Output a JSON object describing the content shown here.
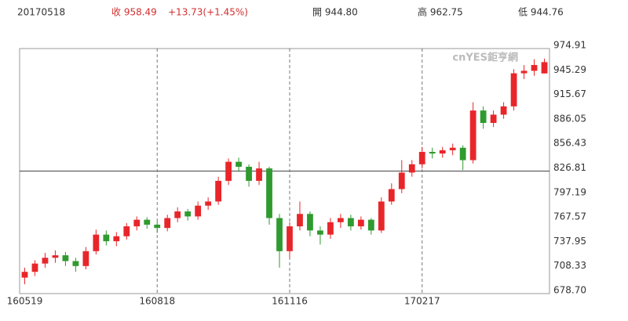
{
  "chart_data": {
    "type": "candlestick",
    "quote": {
      "date": "20170518",
      "close": "收 958.49",
      "change": "+13.73(+1.45%)",
      "open": "開 944.80",
      "high": "高 962.75",
      "low": "低 944.76"
    },
    "watermark": "cnYES鉅亨網",
    "categories": [
      "160519",
      null,
      null,
      null,
      null,
      null,
      null,
      null,
      null,
      null,
      null,
      null,
      null,
      "160818",
      null,
      null,
      null,
      null,
      null,
      null,
      null,
      null,
      null,
      null,
      null,
      null,
      "161116",
      null,
      null,
      null,
      null,
      null,
      null,
      null,
      null,
      null,
      null,
      null,
      null,
      "170217",
      null,
      null,
      null,
      null,
      null,
      null,
      null,
      null,
      null,
      null,
      null,
      null
    ],
    "open": [
      698,
      705,
      715,
      722,
      725,
      718,
      712,
      730,
      750,
      742,
      748,
      760,
      768,
      762,
      758,
      770,
      778,
      772,
      785,
      790,
      815,
      838,
      832,
      815,
      830,
      770,
      730,
      760,
      775,
      755,
      750,
      765,
      770,
      760,
      768,
      755,
      790,
      805,
      825,
      835,
      850,
      848,
      852,
      855,
      840,
      900,
      885,
      895,
      905,
      945,
      948,
      944.8
    ],
    "high": [
      710,
      719,
      728,
      731,
      729,
      722,
      735,
      756,
      755,
      753,
      764,
      772,
      771,
      766,
      774,
      783,
      781,
      790,
      795,
      820,
      842,
      843,
      835,
      838,
      832,
      775,
      765,
      790,
      778,
      760,
      770,
      775,
      774,
      772,
      770,
      795,
      812,
      840,
      840,
      856,
      855,
      856,
      860,
      858,
      910,
      905,
      900,
      910,
      950,
      955,
      962,
      962.75
    ],
    "low": [
      690,
      700,
      710,
      716,
      712,
      705,
      708,
      726,
      737,
      736,
      744,
      755,
      757,
      752,
      754,
      765,
      767,
      768,
      780,
      786,
      810,
      826,
      808,
      810,
      762,
      710,
      722,
      755,
      748,
      738,
      745,
      758,
      755,
      756,
      750,
      752,
      786,
      800,
      820,
      830,
      842,
      843,
      846,
      828,
      836,
      878,
      880,
      890,
      900,
      938,
      942,
      944.76
    ],
    "close": [
      705,
      715,
      722,
      725,
      718,
      712,
      730,
      750,
      742,
      748,
      760,
      768,
      762,
      758,
      770,
      778,
      772,
      785,
      790,
      815,
      838,
      832,
      815,
      830,
      770,
      730,
      760,
      775,
      755,
      750,
      765,
      770,
      760,
      768,
      755,
      790,
      805,
      825,
      835,
      850,
      848,
      852,
      855,
      840,
      900,
      885,
      895,
      905,
      945,
      948,
      955,
      958.49
    ],
    "up_color": "#e8262a",
    "down_color": "#2f9a2f",
    "ylim": [
      678.7,
      974.91
    ],
    "yticks": [
      974.91,
      945.29,
      915.67,
      886.05,
      856.43,
      826.81,
      797.19,
      767.57,
      737.95,
      708.33,
      {
        "value": 678.7,
        "label": "678.70"
      }
    ],
    "reference_line": 826.81
  }
}
